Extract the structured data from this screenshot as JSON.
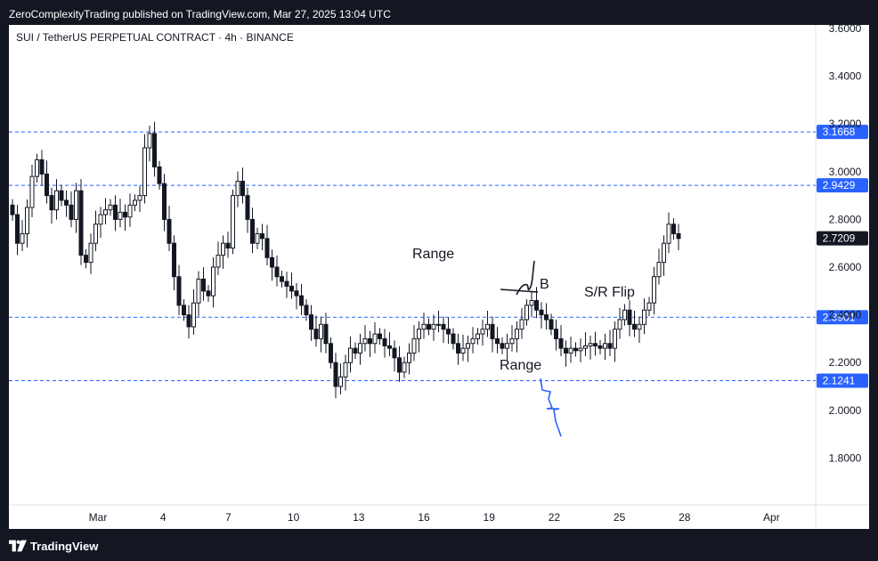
{
  "header": {
    "publish_line": "ZeroComplexityTrading published on TradingView.com, Mar 27, 2025 13:04 UTC"
  },
  "chart": {
    "symbol_title": "SUI / TetherUS PERPETUAL CONTRACT · 4h · BINANCE"
  },
  "footer": {
    "brand": "TradingView",
    "logo_icon": "tradingview-logo-icon"
  },
  "colors": {
    "bull": "#089981",
    "bear": "#f23645",
    "candle_body": "#131722",
    "level_line": "#2962ff",
    "level_label_bg": "#2962ff",
    "current_price_bg": "#131722",
    "axis_text": "#131722"
  },
  "chart_data": {
    "type": "candlestick",
    "interval": "4h",
    "ylim": [
      1.6,
      3.6
    ],
    "y_ticks": [
      "3.6000",
      "3.4000",
      "3.2000",
      "3.0000",
      "2.8000",
      "2.6000",
      "2.4000",
      "2.2000",
      "2.0000",
      "1.8000"
    ],
    "x_ticks": [
      {
        "label": "Mar",
        "day": 1
      },
      {
        "label": "4",
        "day": 4
      },
      {
        "label": "7",
        "day": 7
      },
      {
        "label": "10",
        "day": 10
      },
      {
        "label": "13",
        "day": 13
      },
      {
        "label": "16",
        "day": 16
      },
      {
        "label": "19",
        "day": 19
      },
      {
        "label": "22",
        "day": 22
      },
      {
        "label": "25",
        "day": 25
      },
      {
        "label": "28",
        "day": 28
      },
      {
        "label": "Apr",
        "day": 32
      }
    ],
    "horizontal_levels": [
      "3.1668",
      "2.9429",
      "2.3901",
      "2.1241"
    ],
    "current_price": "2.7209",
    "annotations": [
      "Range",
      "Range",
      "B",
      "S/R Flip"
    ],
    "closes": [
      2.82,
      2.7,
      2.74,
      2.85,
      2.98,
      3.05,
      2.99,
      2.9,
      2.84,
      2.92,
      2.88,
      2.86,
      2.8,
      2.92,
      2.65,
      2.62,
      2.7,
      2.78,
      2.82,
      2.84,
      2.86,
      2.8,
      2.83,
      2.81,
      2.86,
      2.88,
      2.9,
      3.1,
      3.16,
      3.02,
      2.95,
      2.8,
      2.7,
      2.56,
      2.44,
      2.4,
      2.35,
      2.45,
      2.55,
      2.5,
      2.48,
      2.6,
      2.65,
      2.7,
      2.68,
      2.9,
      2.96,
      2.9,
      2.8,
      2.7,
      2.74,
      2.72,
      2.64,
      2.6,
      2.56,
      2.54,
      2.52,
      2.5,
      2.48,
      2.44,
      2.4,
      2.34,
      2.3,
      2.36,
      2.28,
      2.2,
      2.1,
      2.14,
      2.2,
      2.26,
      2.24,
      2.28,
      2.3,
      2.28,
      2.32,
      2.3,
      2.27,
      2.26,
      2.22,
      2.16,
      2.2,
      2.24,
      2.3,
      2.34,
      2.36,
      2.34,
      2.36,
      2.36,
      2.34,
      2.32,
      2.28,
      2.24,
      2.26,
      2.28,
      2.3,
      2.32,
      2.34,
      2.36,
      2.3,
      2.28,
      2.26,
      2.28,
      2.3,
      2.34,
      2.38,
      2.44,
      2.46,
      2.42,
      2.4,
      2.38,
      2.34,
      2.3,
      2.26,
      2.24,
      2.26,
      2.25,
      2.26,
      2.27,
      2.28,
      2.27,
      2.26,
      2.28,
      2.26,
      2.34,
      2.38,
      2.42,
      2.36,
      2.34,
      2.36,
      2.42,
      2.45,
      2.56,
      2.62,
      2.7,
      2.78,
      2.74,
      2.72
    ],
    "opens": [
      2.86,
      2.82,
      2.7,
      2.74,
      2.85,
      2.98,
      3.05,
      2.99,
      2.9,
      2.84,
      2.92,
      2.88,
      2.86,
      2.8,
      2.92,
      2.65,
      2.62,
      2.7,
      2.78,
      2.82,
      2.84,
      2.86,
      2.8,
      2.83,
      2.81,
      2.86,
      2.88,
      2.9,
      3.1,
      3.16,
      3.02,
      2.95,
      2.8,
      2.7,
      2.56,
      2.44,
      2.4,
      2.35,
      2.45,
      2.55,
      2.5,
      2.48,
      2.6,
      2.65,
      2.7,
      2.68,
      2.9,
      2.96,
      2.9,
      2.8,
      2.7,
      2.74,
      2.72,
      2.64,
      2.6,
      2.56,
      2.54,
      2.52,
      2.5,
      2.48,
      2.44,
      2.4,
      2.34,
      2.3,
      2.36,
      2.28,
      2.2,
      2.1,
      2.14,
      2.2,
      2.26,
      2.24,
      2.28,
      2.3,
      2.28,
      2.32,
      2.3,
      2.27,
      2.26,
      2.22,
      2.16,
      2.2,
      2.24,
      2.3,
      2.34,
      2.36,
      2.34,
      2.36,
      2.36,
      2.34,
      2.32,
      2.28,
      2.24,
      2.26,
      2.28,
      2.3,
      2.32,
      2.34,
      2.36,
      2.3,
      2.28,
      2.26,
      2.28,
      2.3,
      2.34,
      2.38,
      2.44,
      2.46,
      2.42,
      2.4,
      2.38,
      2.34,
      2.3,
      2.26,
      2.24,
      2.26,
      2.25,
      2.26,
      2.27,
      2.28,
      2.27,
      2.26,
      2.28,
      2.26,
      2.34,
      2.38,
      2.42,
      2.36,
      2.34,
      2.36,
      2.42,
      2.45,
      2.56,
      2.62,
      2.7,
      2.78,
      2.74
    ]
  }
}
